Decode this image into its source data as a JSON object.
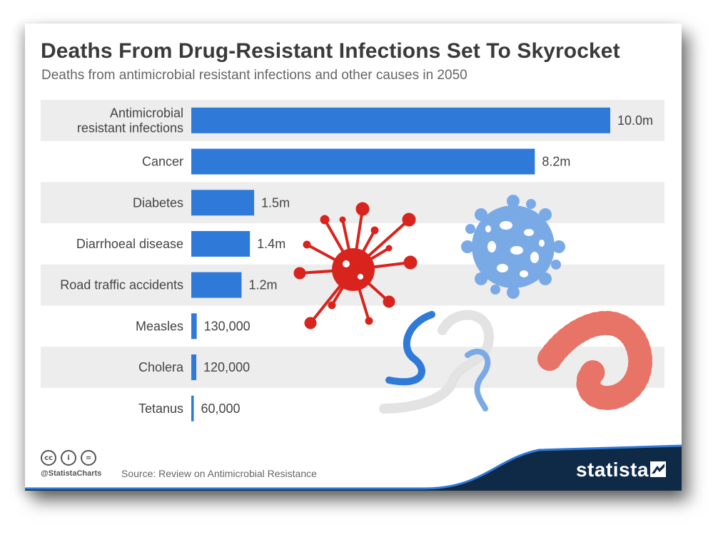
{
  "header": {
    "title": "Deaths From Drug-Resistant Infections Set To Skyrocket",
    "subtitle": "Deaths from antimicrobial resistant infections and other causes in 2050"
  },
  "chart_data": {
    "type": "bar",
    "orientation": "horizontal",
    "title": "Deaths From Drug-Resistant Infections Set To Skyrocket",
    "subtitle": "Deaths from antimicrobial resistant infections and other causes in 2050",
    "categories": [
      [
        "Antimicrobial",
        "resistant infections"
      ],
      [
        "Cancer"
      ],
      [
        "Diabetes"
      ],
      [
        "Diarrhoeal disease"
      ],
      [
        "Road traffic accidents"
      ],
      [
        "Measles"
      ],
      [
        "Cholera"
      ],
      [
        "Tetanus"
      ]
    ],
    "values": [
      10000000,
      8200000,
      1500000,
      1400000,
      1200000,
      130000,
      120000,
      60000
    ],
    "value_labels": [
      "10.0m",
      "8.2m",
      "1.5m",
      "1.4m",
      "1.2m",
      "130,000",
      "120,000",
      "60,000"
    ],
    "xlim": [
      0,
      10000000
    ],
    "bar_color": "#2f7ad8",
    "stripe_color": "#ededed",
    "grid": false,
    "legend": "none"
  },
  "footer": {
    "license_icons": [
      "cc-icon",
      "by-icon",
      "nd-icon"
    ],
    "license_glyphs": [
      "cc",
      "i",
      "="
    ],
    "handle": "@StatistaCharts",
    "source": "Source: Review on Antimicrobial Resistance",
    "brand": "statista",
    "brand_color": "#0e2a47"
  },
  "decorations": [
    "virus-red-icon",
    "virus-blue-icon",
    "bacteria-chain-icon",
    "microbe-salmon-icon"
  ]
}
